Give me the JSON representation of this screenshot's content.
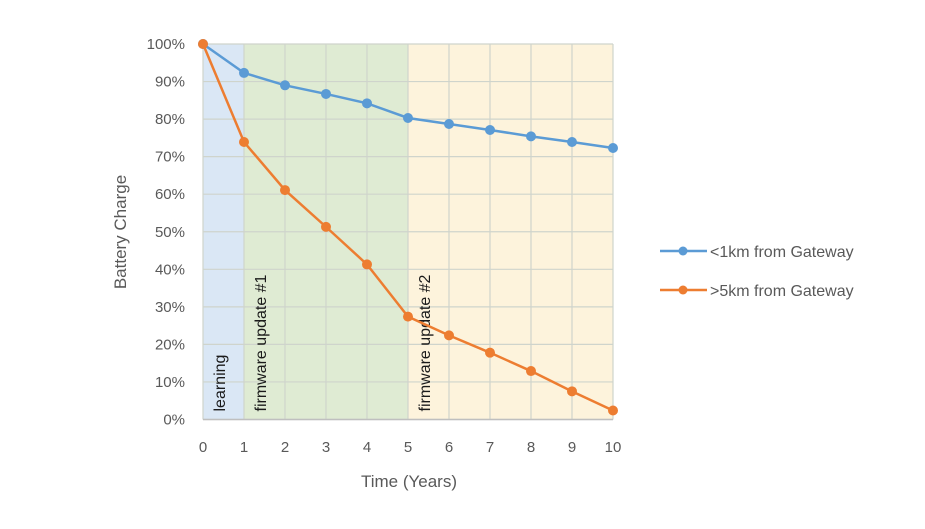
{
  "chart_data": {
    "type": "line",
    "title": "",
    "xlabel": "Time (Years)",
    "ylabel": "Battery Charge",
    "x": [
      0,
      1,
      2,
      3,
      4,
      5,
      6,
      7,
      8,
      9,
      10
    ],
    "xlim": [
      0,
      10
    ],
    "ylim": [
      0,
      100
    ],
    "y_ticks": [
      "0%",
      "10%",
      "20%",
      "30%",
      "40%",
      "50%",
      "60%",
      "70%",
      "80%",
      "90%",
      "100%"
    ],
    "x_ticks": [
      "0",
      "1",
      "2",
      "3",
      "4",
      "5",
      "6",
      "7",
      "8",
      "9",
      "10"
    ],
    "grid": true,
    "legend_position": "right",
    "series": [
      {
        "name": "<1km from Gateway",
        "color": "#5b9bd5",
        "values": [
          100,
          92.3,
          89.0,
          86.7,
          84.2,
          80.3,
          78.7,
          77.1,
          75.4,
          73.9,
          72.3
        ]
      },
      {
        "name": ">5km from Gateway",
        "color": "#ed7d31",
        "values": [
          100,
          73.9,
          61.1,
          51.3,
          41.3,
          27.4,
          22.4,
          17.8,
          12.9,
          7.5,
          2.4
        ]
      }
    ],
    "phases": [
      {
        "label": "learning",
        "start": 0,
        "end": 1,
        "color": "#dae7f5"
      },
      {
        "label": "firmware update #1",
        "start": 1,
        "end": 5,
        "color": "#dfebd3"
      },
      {
        "label": "firmware update #2",
        "start": 5,
        "end": 10,
        "color": "#fdf3dc"
      }
    ]
  }
}
